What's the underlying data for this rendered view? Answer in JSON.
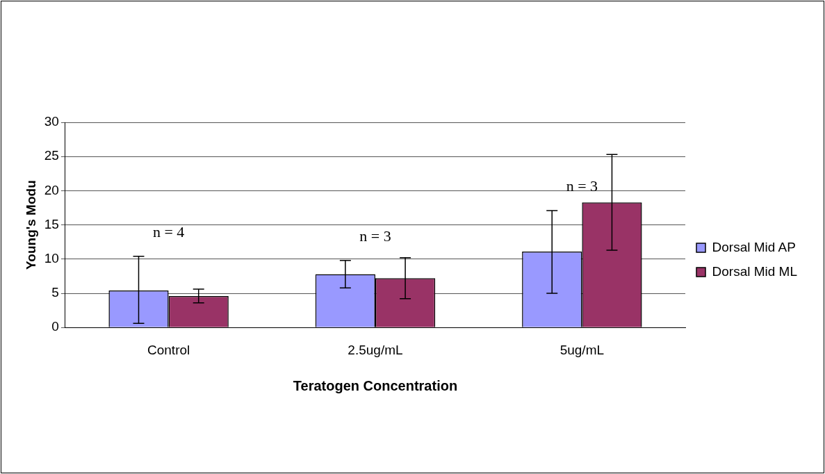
{
  "chart_data": {
    "type": "bar",
    "xlabel": "Teratogen Concentration",
    "ylabel": "Young's Modu",
    "categories": [
      "Control",
      "2.5ug/mL",
      "5ug/mL"
    ],
    "series": [
      {
        "name": "Dorsal Mid AP",
        "color": "#9999ff",
        "values": [
          5.4,
          7.8,
          11.1
        ],
        "errors": [
          [
            0.6,
            10.4
          ],
          [
            5.8,
            9.8
          ],
          [
            5.0,
            17.1
          ]
        ]
      },
      {
        "name": "Dorsal Mid ML",
        "color": "#993366",
        "values": [
          4.6,
          7.2,
          18.3
        ],
        "errors": [
          [
            3.6,
            5.6
          ],
          [
            4.2,
            10.2
          ],
          [
            11.3,
            25.3
          ]
        ]
      }
    ],
    "ylim": [
      0,
      30
    ],
    "yticks": [
      0,
      5,
      10,
      15,
      20,
      25,
      30
    ],
    "grid": "y",
    "legend": "right",
    "annotations": [
      "n = 4",
      "n = 3",
      "n = 3"
    ]
  }
}
